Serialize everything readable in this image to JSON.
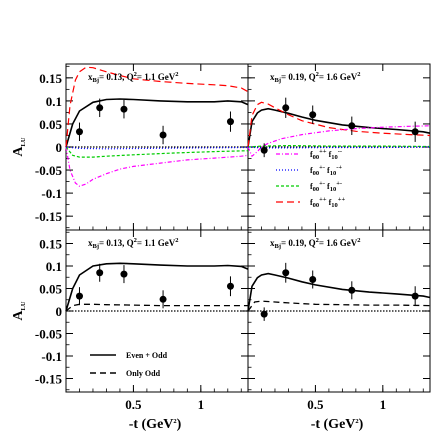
{
  "chart_data": {
    "type": "line",
    "ylabel": "A",
    "ylabel_sub": "LU",
    "xlabel": "-t (GeV",
    "xlabel_sup": "2",
    "xlabel_close": ")",
    "xlim": [
      0.0,
      1.35
    ],
    "ylim": [
      -0.18,
      0.18
    ],
    "y_ticks": [
      {
        "v": 0.15,
        "label": "0.15"
      },
      {
        "v": 0.1,
        "label": "0.1"
      },
      {
        "v": 0.05,
        "label": "0.05"
      },
      {
        "v": 0.0,
        "label": "0"
      },
      {
        "v": -0.05,
        "label": "-0.05"
      },
      {
        "v": -0.1,
        "label": "-0.1"
      },
      {
        "v": -0.15,
        "label": "-0.15"
      }
    ],
    "x_ticks": [
      {
        "v": 0.5,
        "label": "0.5"
      },
      {
        "v": 1.0,
        "label": "1"
      }
    ],
    "panels": [
      {
        "id": "top-left",
        "annotation": {
          "pre": "x",
          "sub1": "Bj",
          "mid": "= 0.13,  Q",
          "sup": "2",
          "post": "= 1.1 GeV",
          "sup2": "2"
        },
        "data_points": [
          {
            "x": 0.1,
            "y": 0.033,
            "err": 0.02
          },
          {
            "x": 0.25,
            "y": 0.085,
            "err": 0.02
          },
          {
            "x": 0.43,
            "y": 0.082,
            "err": 0.02
          },
          {
            "x": 0.72,
            "y": 0.026,
            "err": 0.02
          },
          {
            "x": 1.22,
            "y": 0.055,
            "err": 0.022
          }
        ],
        "series": [
          {
            "style": "solid",
            "color": "#000000",
            "width": 1.6,
            "x": [
              0.0,
              0.05,
              0.1,
              0.2,
              0.3,
              0.4,
              0.5,
              0.7,
              0.9,
              1.1,
              1.2,
              1.3,
              1.35
            ],
            "y": [
              0.0,
              0.05,
              0.078,
              0.097,
              0.103,
              0.104,
              0.103,
              0.1,
              0.098,
              0.098,
              0.1,
              0.098,
              0.092
            ]
          },
          {
            "style": "longdash",
            "color": "#ff0000",
            "width": 1.2,
            "x": [
              0.0,
              0.03,
              0.07,
              0.1,
              0.15,
              0.2,
              0.3,
              0.4,
              0.5,
              0.7,
              0.9,
              1.1,
              1.2,
              1.3,
              1.35
            ],
            "y": [
              0.0,
              0.09,
              0.145,
              0.163,
              0.173,
              0.172,
              0.163,
              0.155,
              0.148,
              0.142,
              0.138,
              0.135,
              0.133,
              0.128,
              0.12
            ]
          },
          {
            "style": "dashdot",
            "color": "#ff00ff",
            "width": 1.2,
            "x": [
              0.0,
              0.03,
              0.07,
              0.1,
              0.15,
              0.2,
              0.3,
              0.4,
              0.5,
              0.7,
              0.9,
              1.1,
              1.3,
              1.35
            ],
            "y": [
              0.0,
              -0.05,
              -0.078,
              -0.085,
              -0.08,
              -0.07,
              -0.058,
              -0.048,
              -0.042,
              -0.035,
              -0.028,
              -0.024,
              -0.02,
              -0.018
            ]
          },
          {
            "style": "shortdash",
            "color": "#00cc00",
            "width": 1.2,
            "x": [
              0.0,
              0.05,
              0.1,
              0.2,
              0.3,
              0.5,
              0.8,
              1.1,
              1.35
            ],
            "y": [
              0.0,
              -0.018,
              -0.022,
              -0.022,
              -0.02,
              -0.017,
              -0.013,
              -0.01,
              -0.008
            ]
          },
          {
            "style": "dotted",
            "color": "#0000ff",
            "width": 1.2,
            "x": [
              0.0,
              0.1,
              0.3,
              0.6,
              1.0,
              1.35
            ],
            "y": [
              0.0,
              -0.003,
              -0.004,
              -0.003,
              -0.002,
              -0.001
            ]
          }
        ]
      },
      {
        "id": "top-right",
        "annotation": {
          "pre": "x",
          "sub1": "Bj",
          "mid": "= 0.19,  Q",
          "sup": "2",
          "post": "= 1.6 GeV",
          "sup2": "2"
        },
        "data_points": [
          {
            "x": 0.12,
            "y": -0.007,
            "err": 0.015
          },
          {
            "x": 0.28,
            "y": 0.085,
            "err": 0.022
          },
          {
            "x": 0.48,
            "y": 0.07,
            "err": 0.02
          },
          {
            "x": 0.77,
            "y": 0.046,
            "err": 0.02
          },
          {
            "x": 1.24,
            "y": 0.033,
            "err": 0.022
          }
        ],
        "series": [
          {
            "style": "solid",
            "color": "#000000",
            "width": 1.6,
            "x": [
              0.0,
              0.03,
              0.07,
              0.1,
              0.15,
              0.2,
              0.3,
              0.4,
              0.5,
              0.7,
              0.9,
              1.1,
              1.3,
              1.35
            ],
            "y": [
              0.0,
              0.055,
              0.074,
              0.08,
              0.083,
              0.08,
              0.073,
              0.065,
              0.058,
              0.048,
              0.042,
              0.038,
              0.033,
              0.03
            ]
          },
          {
            "style": "longdash",
            "color": "#ff0000",
            "width": 1.2,
            "x": [
              0.0,
              0.03,
              0.07,
              0.1,
              0.15,
              0.2,
              0.3,
              0.4,
              0.6,
              0.8,
              1.0,
              1.2,
              1.35
            ],
            "y": [
              0.0,
              0.068,
              0.092,
              0.097,
              0.093,
              0.085,
              0.07,
              0.057,
              0.042,
              0.034,
              0.03,
              0.027,
              0.025
            ]
          },
          {
            "style": "dashdot",
            "color": "#ff00ff",
            "width": 1.2,
            "x": [
              0.0,
              0.03,
              0.07,
              0.1,
              0.15,
              0.25,
              0.4,
              0.6,
              0.8,
              1.0,
              1.2,
              1.35
            ],
            "y": [
              0.0,
              -0.02,
              -0.01,
              0.0,
              0.008,
              0.018,
              0.027,
              0.035,
              0.04,
              0.043,
              0.045,
              0.046
            ]
          },
          {
            "style": "shortdash",
            "color": "#00cc00",
            "width": 1.2,
            "x": [
              0.0,
              0.1,
              0.3,
              0.6,
              1.0,
              1.35
            ],
            "y": [
              0.0,
              0.002,
              0.003,
              0.002,
              0.002,
              0.001
            ]
          },
          {
            "style": "dotted",
            "color": "#0000ff",
            "width": 1.2,
            "x": [
              0.0,
              0.1,
              0.3,
              0.6,
              1.0,
              1.35
            ],
            "y": [
              0.0,
              -0.002,
              -0.002,
              -0.001,
              -0.001,
              0.0
            ]
          }
        ],
        "legend": [
          {
            "style": "dashdot",
            "color": "#ff00ff",
            "a": "f",
            "a_sub": "00",
            "a_sup": "++",
            "b": " f",
            "b_sub": "10",
            "b_sup": "--"
          },
          {
            "style": "dotted",
            "color": "#0000ff",
            "a": "f",
            "a_sub": "00",
            "a_sup": "+-",
            "b": " f",
            "b_sub": "10",
            "b_sup": "-+"
          },
          {
            "style": "shortdash",
            "color": "#00cc00",
            "a": "f",
            "a_sub": "00",
            "a_sup": "+-",
            "b": " f",
            "b_sub": "10",
            "b_sup": "+-"
          },
          {
            "style": "longdash",
            "color": "#ff0000",
            "a": "f",
            "a_sub": "00",
            "a_sup": "++",
            "b": " f",
            "b_sub": "10",
            "b_sup": "++"
          }
        ]
      },
      {
        "id": "bottom-left",
        "annotation": {
          "pre": "x",
          "sub1": "Bj",
          "mid": "= 0.13,  Q",
          "sup": "2",
          "post": "= 1.1 GeV",
          "sup2": "2"
        },
        "data_points": [
          {
            "x": 0.1,
            "y": 0.033,
            "err": 0.02
          },
          {
            "x": 0.25,
            "y": 0.085,
            "err": 0.02
          },
          {
            "x": 0.43,
            "y": 0.082,
            "err": 0.02
          },
          {
            "x": 0.72,
            "y": 0.026,
            "err": 0.02
          },
          {
            "x": 1.22,
            "y": 0.055,
            "err": 0.022
          }
        ],
        "series": [
          {
            "name": "Even + Odd",
            "style": "solid",
            "color": "#000000",
            "width": 1.6,
            "x": [
              0.0,
              0.05,
              0.1,
              0.2,
              0.3,
              0.4,
              0.5,
              0.7,
              0.9,
              1.1,
              1.2,
              1.3,
              1.35
            ],
            "y": [
              0.0,
              0.05,
              0.08,
              0.1,
              0.105,
              0.106,
              0.105,
              0.102,
              0.1,
              0.1,
              0.101,
              0.099,
              0.093
            ]
          },
          {
            "name": "Only Odd",
            "style": "dash",
            "color": "#000000",
            "width": 1.3,
            "x": [
              0.0,
              0.05,
              0.1,
              0.2,
              0.3,
              0.5,
              0.7,
              0.9,
              1.1,
              1.35
            ],
            "y": [
              0.0,
              0.012,
              0.015,
              0.015,
              0.014,
              0.013,
              0.012,
              0.012,
              0.012,
              0.012
            ]
          }
        ],
        "legend": [
          {
            "style": "solid",
            "label": "Even + Odd"
          },
          {
            "style": "dash",
            "label": "Only Odd"
          }
        ]
      },
      {
        "id": "bottom-right",
        "annotation": {
          "pre": "x",
          "sub1": "Bj",
          "mid": "= 0.19,  Q",
          "sup": "2",
          "post": "=  1.6 GeV",
          "sup2": "2"
        },
        "data_points": [
          {
            "x": 0.12,
            "y": -0.007,
            "err": 0.015
          },
          {
            "x": 0.28,
            "y": 0.085,
            "err": 0.022
          },
          {
            "x": 0.48,
            "y": 0.07,
            "err": 0.02
          },
          {
            "x": 0.77,
            "y": 0.046,
            "err": 0.02
          },
          {
            "x": 1.24,
            "y": 0.033,
            "err": 0.022
          }
        ],
        "series": [
          {
            "style": "solid",
            "color": "#000000",
            "width": 1.6,
            "x": [
              0.0,
              0.03,
              0.07,
              0.1,
              0.15,
              0.2,
              0.3,
              0.4,
              0.5,
              0.7,
              0.9,
              1.1,
              1.3,
              1.35
            ],
            "y": [
              0.0,
              0.055,
              0.074,
              0.08,
              0.083,
              0.08,
              0.073,
              0.065,
              0.058,
              0.048,
              0.042,
              0.038,
              0.033,
              0.03
            ]
          },
          {
            "style": "dash",
            "color": "#000000",
            "width": 1.3,
            "x": [
              0.0,
              0.05,
              0.1,
              0.2,
              0.3,
              0.5,
              0.7,
              0.9,
              1.1,
              1.35
            ],
            "y": [
              0.0,
              0.02,
              0.022,
              0.02,
              0.018,
              0.015,
              0.014,
              0.013,
              0.013,
              0.012
            ]
          }
        ]
      }
    ]
  }
}
